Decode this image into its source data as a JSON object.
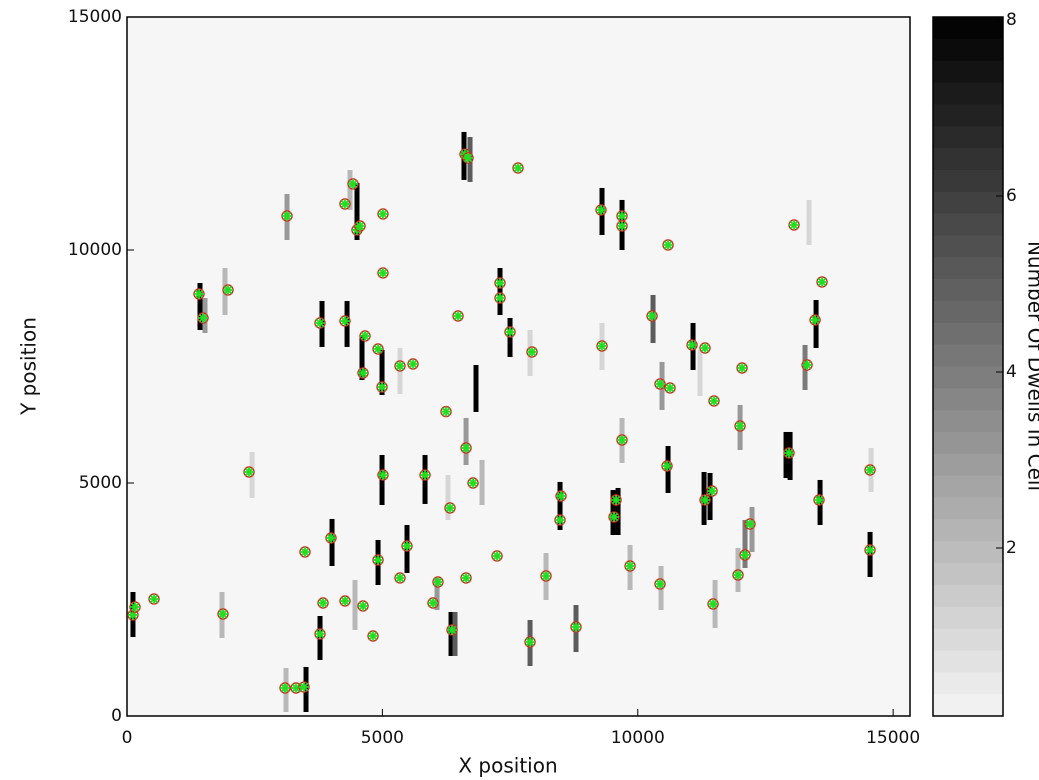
{
  "chart_data": {
    "type": "dwell-scatter",
    "x_label": "X position",
    "y_label": "Y position",
    "colorbar_label": "Number Of Dwells In Cell",
    "xlim": [
      0,
      15330
    ],
    "ylim": [
      0,
      15000
    ],
    "xticks": [
      0,
      5000,
      10000,
      15000
    ],
    "yticks": [
      0,
      5000,
      10000,
      15000
    ],
    "clim": [
      0,
      8
    ],
    "cticks": [
      2,
      4,
      6,
      8
    ],
    "marker_color": "#22dd22",
    "circle_color": "#dd2222",
    "points": [
      [
        117,
        2167
      ],
      [
        157,
        2339
      ],
      [
        529,
        2511
      ],
      [
        1410,
        9056
      ],
      [
        1488,
        8541
      ],
      [
        1978,
        9142
      ],
      [
        1880,
        2189
      ],
      [
        2389,
        5236
      ],
      [
        3133,
        10730
      ],
      [
        4425,
        11417
      ],
      [
        4268,
        10988
      ],
      [
        4503,
        10430
      ],
      [
        4562,
        10515
      ],
      [
        5012,
        10773
      ],
      [
        5012,
        9507
      ],
      [
        3779,
        8434
      ],
      [
        4268,
        8477
      ],
      [
        4660,
        8155
      ],
      [
        4915,
        7876
      ],
      [
        4993,
        7060
      ],
      [
        4621,
        7361
      ],
      [
        5345,
        7511
      ],
      [
        5600,
        7554
      ],
      [
        6246,
        6532
      ],
      [
        6481,
        8584
      ],
      [
        6618,
        12056
      ],
      [
        6677,
        11975
      ],
      [
        7656,
        11760
      ],
      [
        7303,
        9292
      ],
      [
        7303,
        8970
      ],
      [
        7499,
        8241
      ],
      [
        7930,
        7812
      ],
      [
        9281,
        10859
      ],
      [
        9692,
        10730
      ],
      [
        9692,
        10515
      ],
      [
        10593,
        10108
      ],
      [
        9300,
        7940
      ],
      [
        10280,
        8584
      ],
      [
        11317,
        7897
      ],
      [
        11063,
        7962
      ],
      [
        10436,
        7125
      ],
      [
        10632,
        7039
      ],
      [
        11493,
        6760
      ],
      [
        12042,
        7468
      ],
      [
        13060,
        10537
      ],
      [
        13608,
        9314
      ],
      [
        13471,
        8498
      ],
      [
        13315,
        7532
      ],
      [
        12962,
        5644
      ],
      [
        14548,
        5279
      ],
      [
        13549,
        4635
      ],
      [
        6638,
        5751
      ],
      [
        6775,
        5000
      ],
      [
        6324,
        4464
      ],
      [
        5012,
        5172
      ],
      [
        5835,
        5172
      ],
      [
        3485,
        3520
      ],
      [
        3994,
        3820
      ],
      [
        3779,
        1760
      ],
      [
        3838,
        2425
      ],
      [
        4268,
        2468
      ],
      [
        4621,
        2361
      ],
      [
        4817,
        1717
      ],
      [
        4915,
        3348
      ],
      [
        5482,
        3648
      ],
      [
        5345,
        2962
      ],
      [
        5991,
        2425
      ],
      [
        6089,
        2876
      ],
      [
        6363,
        1846
      ],
      [
        6638,
        2962
      ],
      [
        7245,
        3434
      ],
      [
        7891,
        1588
      ],
      [
        8204,
        3005
      ],
      [
        8498,
        4721
      ],
      [
        8478,
        4206
      ],
      [
        8791,
        1910
      ],
      [
        9535,
        4270
      ],
      [
        9575,
        4635
      ],
      [
        9692,
        5923
      ],
      [
        9849,
        3219
      ],
      [
        10436,
        2833
      ],
      [
        10573,
        5365
      ],
      [
        11317,
        4635
      ],
      [
        11454,
        4829
      ],
      [
        11474,
        2404
      ],
      [
        12003,
        6223
      ],
      [
        11963,
        3026
      ],
      [
        12100,
        3455
      ],
      [
        12198,
        4120
      ],
      [
        14548,
        3562
      ],
      [
        3094,
        601
      ],
      [
        3309,
        601
      ],
      [
        3466,
        622
      ]
    ],
    "cells": [
      [
        117,
        1695,
        2661,
        8
      ],
      [
        1429,
        8284,
        9292,
        8
      ],
      [
        1527,
        8219,
        8970,
        3
      ],
      [
        1919,
        8605,
        9614,
        2
      ],
      [
        1860,
        1674,
        2661,
        2
      ],
      [
        2448,
        4678,
        5665,
        1
      ],
      [
        3133,
        10215,
        11202,
        3
      ],
      [
        4366,
        10859,
        11717,
        2
      ],
      [
        4503,
        10215,
        11438,
        8
      ],
      [
        3818,
        7919,
        8906,
        8
      ],
      [
        4308,
        7919,
        8906,
        8
      ],
      [
        4601,
        7211,
        8176,
        8
      ],
      [
        4993,
        6889,
        7854,
        8
      ],
      [
        5345,
        6910,
        7897,
        1
      ],
      [
        3779,
        1202,
        2146,
        8
      ],
      [
        4014,
        3219,
        4228,
        8
      ],
      [
        4464,
        1846,
        2919,
        2
      ],
      [
        4915,
        2811,
        3777,
        8
      ],
      [
        4993,
        4528,
        5601,
        8
      ],
      [
        5482,
        3069,
        4099,
        8
      ],
      [
        5835,
        4550,
        5601,
        8
      ],
      [
        6598,
        11503,
        12533,
        8
      ],
      [
        6716,
        11460,
        12425,
        5
      ],
      [
        7303,
        8605,
        9614,
        8
      ],
      [
        7499,
        7704,
        8541,
        8
      ],
      [
        7891,
        7296,
        8284,
        1
      ],
      [
        6833,
        6524,
        7532,
        8
      ],
      [
        9300,
        10322,
        11331,
        8
      ],
      [
        9692,
        10000,
        11074,
        8
      ],
      [
        10299,
        8004,
        9035,
        5
      ],
      [
        9300,
        7425,
        8434,
        1
      ],
      [
        11082,
        7425,
        8434,
        8
      ],
      [
        11219,
        6867,
        7854,
        1
      ],
      [
        10475,
        6567,
        7597,
        3
      ],
      [
        9692,
        5429,
        6395,
        2
      ],
      [
        10593,
        4786,
        5794,
        8
      ],
      [
        11298,
        4099,
        5236,
        8
      ],
      [
        11415,
        4206,
        5215,
        8
      ],
      [
        12003,
        5708,
        6674,
        3
      ],
      [
        12903,
        5107,
        6095,
        8
      ],
      [
        12982,
        5065,
        6095,
        8
      ],
      [
        13491,
        7897,
        8927,
        8
      ],
      [
        13275,
        6996,
        7962,
        4
      ],
      [
        13354,
        10108,
        11074,
        1
      ],
      [
        13569,
        4099,
        5065,
        8
      ],
      [
        14568,
        4807,
        5751,
        1
      ],
      [
        14548,
        2983,
        3949,
        8
      ],
      [
        8478,
        3992,
        5022,
        8
      ],
      [
        9516,
        3884,
        4850,
        8
      ],
      [
        9614,
        3884,
        4893,
        8
      ],
      [
        8791,
        1373,
        2382,
        5
      ],
      [
        7891,
        1073,
        2060,
        5
      ],
      [
        6344,
        1288,
        2232,
        8
      ],
      [
        6422,
        1288,
        2232,
        5
      ],
      [
        6070,
        2275,
        2983,
        3
      ],
      [
        6285,
        4206,
        5172,
        1
      ],
      [
        6638,
        5386,
        6395,
        3
      ],
      [
        6951,
        4528,
        5494,
        2
      ],
      [
        3505,
        86,
        1052,
        8
      ],
      [
        3113,
        86,
        1030,
        2
      ],
      [
        11513,
        1888,
        2919,
        2
      ],
      [
        12100,
        3176,
        4206,
        4
      ],
      [
        12237,
        3519,
        4485,
        3
      ],
      [
        11963,
        2661,
        3605,
        2
      ],
      [
        10456,
        2275,
        3219,
        2
      ],
      [
        8204,
        2489,
        3498,
        2
      ],
      [
        9849,
        2704,
        3670,
        2
      ]
    ]
  }
}
